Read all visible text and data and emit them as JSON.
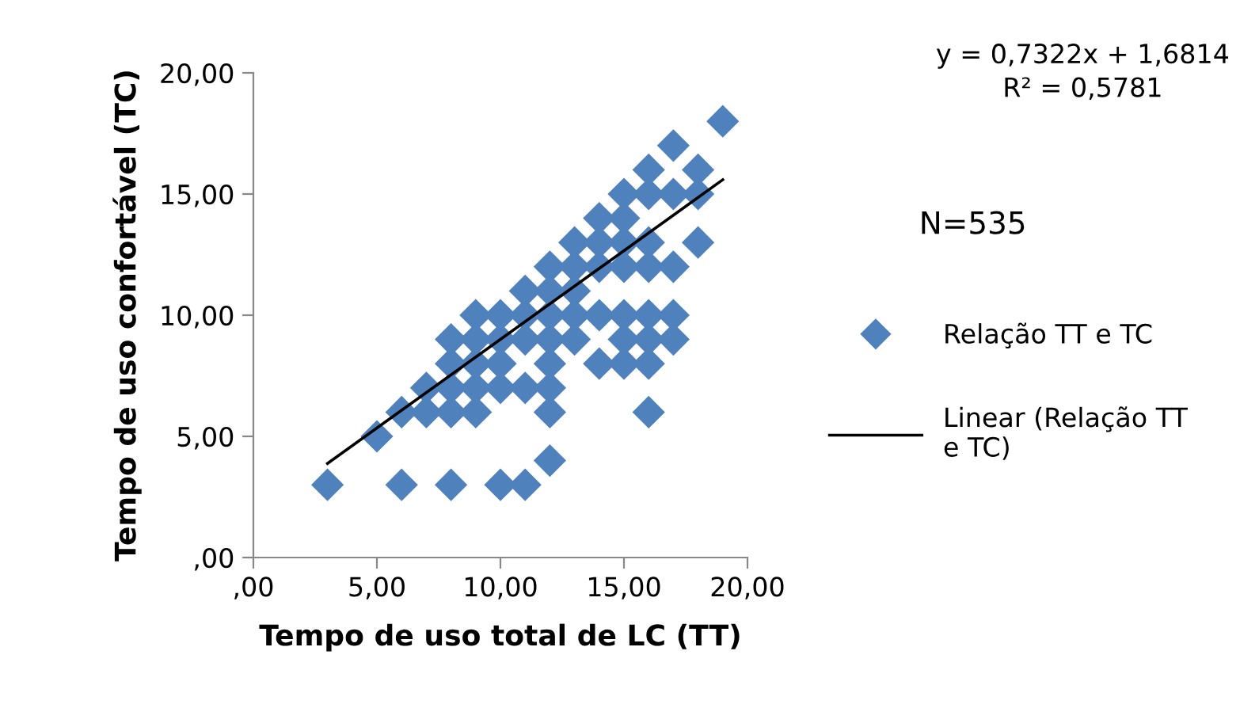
{
  "chart_data": {
    "type": "scatter",
    "xlabel": "Tempo de uso total de LC (TT)",
    "ylabel": "Tempo de uso confortável (TC)",
    "xlim": [
      0,
      20
    ],
    "ylim": [
      0,
      20
    ],
    "xticks": [
      {
        "value": 0,
        "label": ",00"
      },
      {
        "value": 5,
        "label": "5,00"
      },
      {
        "value": 10,
        "label": "10,00"
      },
      {
        "value": 15,
        "label": "15,00"
      },
      {
        "value": 20,
        "label": "20,00"
      }
    ],
    "yticks": [
      {
        "value": 0,
        "label": ",00"
      },
      {
        "value": 5,
        "label": "5,00"
      },
      {
        "value": 10,
        "label": "10,00"
      },
      {
        "value": 15,
        "label": "15,00"
      },
      {
        "value": 20,
        "label": "20,00"
      }
    ],
    "grid": false,
    "legend": "right",
    "marker": "diamond",
    "annotations": [
      "y = 0,7322x + 1,6814\nR² = 0,5781",
      "N=535"
    ],
    "series": [
      {
        "name": "Relação TT e TC",
        "color": "#4f81bd",
        "x": [
          3,
          6,
          8,
          10,
          11,
          12,
          5,
          6,
          7,
          8,
          9,
          12,
          16,
          7,
          8,
          9,
          10,
          11,
          12,
          8,
          9,
          10,
          12,
          14,
          15,
          16,
          8,
          9,
          10,
          11,
          12,
          13,
          15,
          16,
          17,
          9,
          10,
          11,
          12,
          13,
          14,
          15,
          16,
          17,
          11,
          12,
          13,
          12,
          13,
          14,
          15,
          16,
          17,
          13,
          14,
          15,
          16,
          18,
          14,
          15,
          15,
          16,
          17,
          18,
          16,
          18,
          17,
          19
        ],
        "values": [
          3,
          3,
          3,
          3,
          3,
          4,
          5,
          6,
          6,
          6,
          6,
          6,
          6,
          7,
          7,
          7,
          7,
          7,
          7,
          8,
          8,
          8,
          8,
          8,
          8,
          8,
          9,
          9,
          9,
          9,
          9,
          9,
          9,
          9,
          9,
          10,
          10,
          10,
          10,
          10,
          10,
          10,
          10,
          10,
          11,
          11,
          11,
          12,
          12,
          12,
          12,
          12,
          12,
          13,
          13,
          13,
          13,
          13,
          14,
          14,
          15,
          15,
          15,
          15,
          16,
          16,
          17,
          18
        ]
      },
      {
        "name": "Linear (Relação TT e TC)",
        "type": "line",
        "color": "#000000",
        "marker": "none",
        "line_style": "solid",
        "x": [
          3,
          19
        ],
        "values": [
          3.88,
          15.59
        ]
      }
    ]
  }
}
